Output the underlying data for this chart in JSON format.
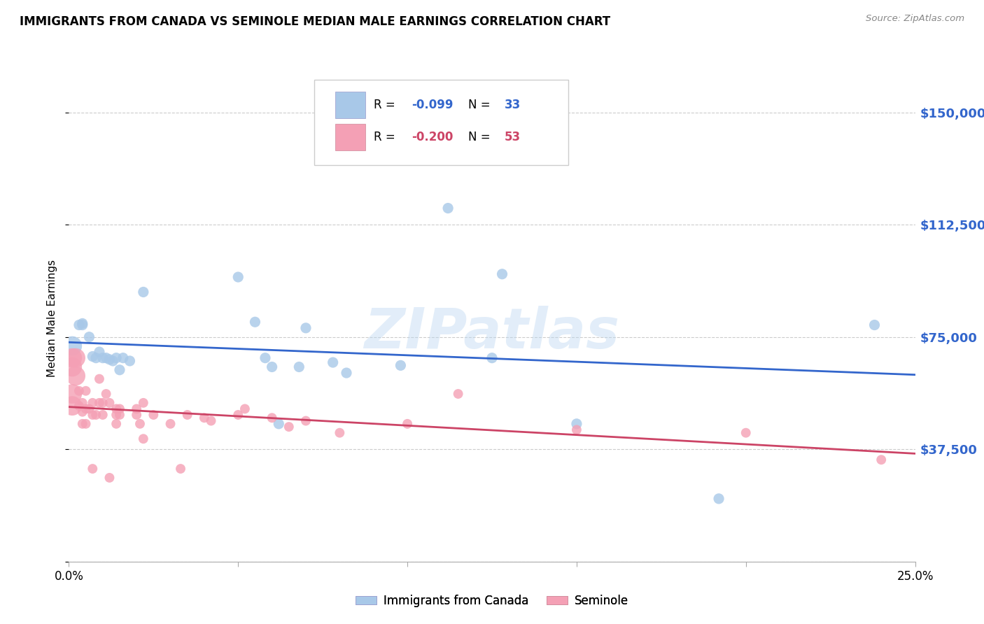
{
  "title": "IMMIGRANTS FROM CANADA VS SEMINOLE MEDIAN MALE EARNINGS CORRELATION CHART",
  "source": "Source: ZipAtlas.com",
  "ylabel": "Median Male Earnings",
  "yticks": [
    0,
    37500,
    75000,
    112500,
    150000
  ],
  "ytick_labels": [
    "",
    "$37,500",
    "$75,000",
    "$112,500",
    "$150,000"
  ],
  "xmin": 0.0,
  "xmax": 0.25,
  "ymin": 0,
  "ymax": 162500,
  "legend_blue_r": "-0.099",
  "legend_blue_n": "33",
  "legend_pink_r": "-0.200",
  "legend_pink_n": "53",
  "legend_bottom_blue": "Immigrants from Canada",
  "legend_bottom_pink": "Seminole",
  "blue_color": "#a8c8e8",
  "pink_color": "#f4a0b5",
  "blue_line_color": "#3366cc",
  "pink_line_color": "#cc4466",
  "ytick_color": "#3366cc",
  "watermark": "ZIPatlas",
  "bg_color": "#ffffff",
  "grid_color": "#cccccc",
  "blue_scatter": [
    [
      0.001,
      72000
    ],
    [
      0.003,
      79000
    ],
    [
      0.004,
      79500
    ],
    [
      0.004,
      79000
    ],
    [
      0.006,
      75000
    ],
    [
      0.007,
      68500
    ],
    [
      0.008,
      68000
    ],
    [
      0.009,
      70000
    ],
    [
      0.01,
      68000
    ],
    [
      0.011,
      68000
    ],
    [
      0.012,
      67500
    ],
    [
      0.013,
      67000
    ],
    [
      0.014,
      68000
    ],
    [
      0.015,
      64000
    ],
    [
      0.016,
      68000
    ],
    [
      0.018,
      67000
    ],
    [
      0.022,
      90000
    ],
    [
      0.05,
      95000
    ],
    [
      0.055,
      80000
    ],
    [
      0.058,
      68000
    ],
    [
      0.06,
      65000
    ],
    [
      0.062,
      46000
    ],
    [
      0.068,
      65000
    ],
    [
      0.07,
      78000
    ],
    [
      0.078,
      66500
    ],
    [
      0.082,
      63000
    ],
    [
      0.098,
      65500
    ],
    [
      0.112,
      118000
    ],
    [
      0.128,
      96000
    ],
    [
      0.15,
      46000
    ],
    [
      0.192,
      21000
    ],
    [
      0.238,
      79000
    ],
    [
      0.125,
      68000
    ]
  ],
  "pink_scatter": [
    [
      0.001,
      68000
    ],
    [
      0.001,
      65000
    ],
    [
      0.001,
      56000
    ],
    [
      0.001,
      52000
    ],
    [
      0.002,
      62000
    ],
    [
      0.002,
      68000
    ],
    [
      0.003,
      57000
    ],
    [
      0.003,
      52000
    ],
    [
      0.004,
      50000
    ],
    [
      0.004,
      53000
    ],
    [
      0.004,
      46000
    ],
    [
      0.005,
      51000
    ],
    [
      0.005,
      57000
    ],
    [
      0.005,
      46000
    ],
    [
      0.006,
      51000
    ],
    [
      0.007,
      53000
    ],
    [
      0.007,
      49000
    ],
    [
      0.007,
      31000
    ],
    [
      0.008,
      49000
    ],
    [
      0.009,
      53000
    ],
    [
      0.009,
      61000
    ],
    [
      0.01,
      53000
    ],
    [
      0.01,
      49000
    ],
    [
      0.011,
      56000
    ],
    [
      0.012,
      53000
    ],
    [
      0.012,
      28000
    ],
    [
      0.014,
      51000
    ],
    [
      0.014,
      49000
    ],
    [
      0.014,
      46000
    ],
    [
      0.015,
      49000
    ],
    [
      0.015,
      51000
    ],
    [
      0.02,
      51000
    ],
    [
      0.02,
      49000
    ],
    [
      0.021,
      46000
    ],
    [
      0.022,
      53000
    ],
    [
      0.022,
      41000
    ],
    [
      0.025,
      49000
    ],
    [
      0.03,
      46000
    ],
    [
      0.033,
      31000
    ],
    [
      0.035,
      49000
    ],
    [
      0.04,
      48000
    ],
    [
      0.042,
      47000
    ],
    [
      0.05,
      49000
    ],
    [
      0.052,
      51000
    ],
    [
      0.06,
      48000
    ],
    [
      0.065,
      45000
    ],
    [
      0.07,
      47000
    ],
    [
      0.08,
      43000
    ],
    [
      0.1,
      46000
    ],
    [
      0.115,
      56000
    ],
    [
      0.15,
      44000
    ],
    [
      0.2,
      43000
    ],
    [
      0.24,
      34000
    ]
  ]
}
